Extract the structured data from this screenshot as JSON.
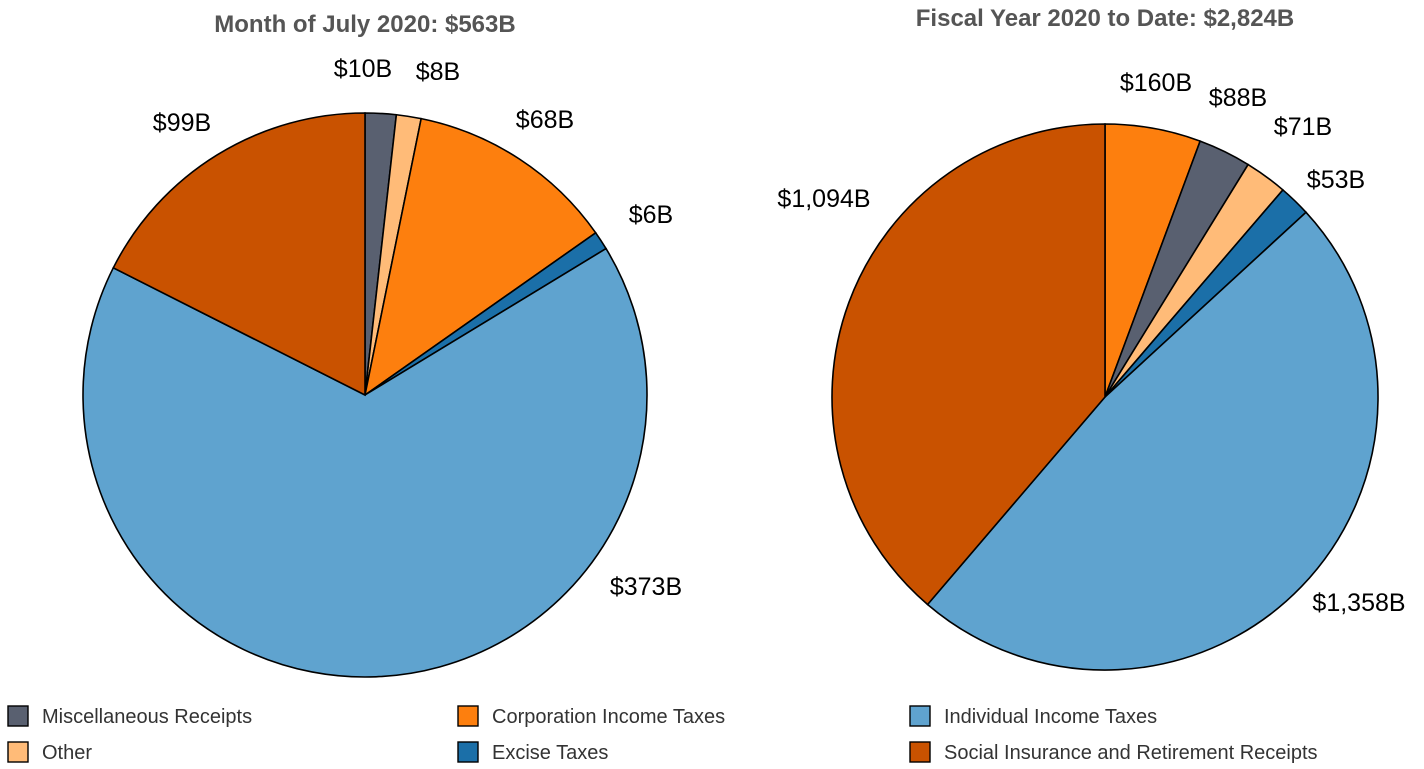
{
  "colors": {
    "Miscellaneous Receipts": "#596070",
    "Other": "#ffbb78",
    "Corporation Income Taxes": "#fd7f0e",
    "Excise Taxes": "#1b6fa8",
    "Individual Income Taxes": "#5fa3cf",
    "Social Insurance and Retirement Receipts": "#c95200"
  },
  "legend": {
    "items": [
      "Miscellaneous Receipts",
      "Corporation Income Taxes",
      "Individual Income Taxes",
      "Other",
      "Excise Taxes",
      "Social Insurance and Retirement Receipts"
    ]
  },
  "chart_data": [
    {
      "type": "pie",
      "title": "Month of July 2020: $563B",
      "slices": [
        {
          "category": "Miscellaneous Receipts",
          "value": 10,
          "label": "$10B"
        },
        {
          "category": "Other",
          "value": 8,
          "label": "$8B"
        },
        {
          "category": "Corporation Income Taxes",
          "value": 68,
          "label": "$68B"
        },
        {
          "category": "Excise Taxes",
          "value": 6,
          "label": "$6B"
        },
        {
          "category": "Individual Income Taxes",
          "value": 373,
          "label": "$373B"
        },
        {
          "category": "Social Insurance and Retirement Receipts",
          "value": 99,
          "label": "$99B"
        }
      ]
    },
    {
      "type": "pie",
      "title": "Fiscal Year 2020 to Date: $2,824B",
      "slices": [
        {
          "category": "Corporation Income Taxes",
          "value": 160,
          "label": "$160B"
        },
        {
          "category": "Miscellaneous Receipts",
          "value": 88,
          "label": "$88B"
        },
        {
          "category": "Other",
          "value": 71,
          "label": "$71B"
        },
        {
          "category": "Excise Taxes",
          "value": 53,
          "label": "$53B"
        },
        {
          "category": "Individual Income Taxes",
          "value": 1358,
          "label": "$1,358B"
        },
        {
          "category": "Social Insurance and Retirement Receipts",
          "value": 1094,
          "label": "$1,094B"
        }
      ]
    }
  ]
}
